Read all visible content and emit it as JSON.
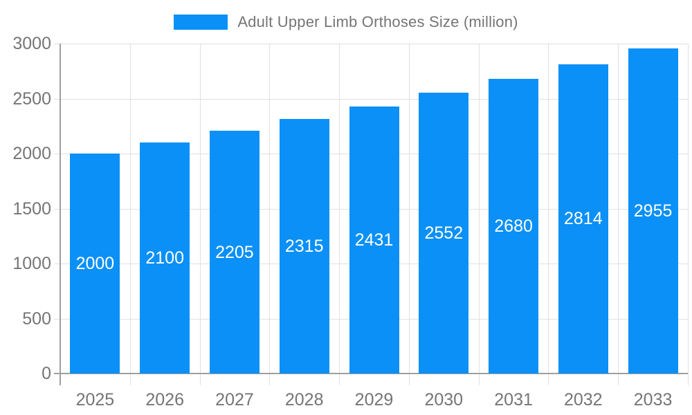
{
  "chart_data": {
    "type": "bar",
    "title": "Adult Upper Limb Orthoses Size (million)",
    "legend": {
      "label": "Adult Upper Limb Orthoses Size (million)",
      "position": "top-center",
      "swatch_color": "#0a90f6"
    },
    "categories": [
      "2025",
      "2026",
      "2027",
      "2028",
      "2029",
      "2030",
      "2031",
      "2032",
      "2033"
    ],
    "series": [
      {
        "name": "Adult Upper Limb Orthoses Size (million)",
        "values": [
          2000,
          2100,
          2205,
          2315,
          2431,
          2552,
          2680,
          2814,
          2955
        ]
      }
    ],
    "bar_value_labels": [
      "2000",
      "2100",
      "2205",
      "2315",
      "2431",
      "2552",
      "2680",
      "2814",
      "2955"
    ],
    "xlabel": "",
    "ylabel": "",
    "ylim": [
      0,
      3000
    ],
    "yticks": [
      0,
      500,
      1000,
      1500,
      2000,
      2500,
      3000
    ],
    "grid": "both",
    "legend_visible": true,
    "colors": {
      "bar": "#0a90f6",
      "axis": "#9e9e9e",
      "grid": "#e0e0e0",
      "axis_label": "#757575",
      "legend_text": "#757575",
      "bar_label": "#ffffff",
      "background": "#ffffff"
    }
  }
}
